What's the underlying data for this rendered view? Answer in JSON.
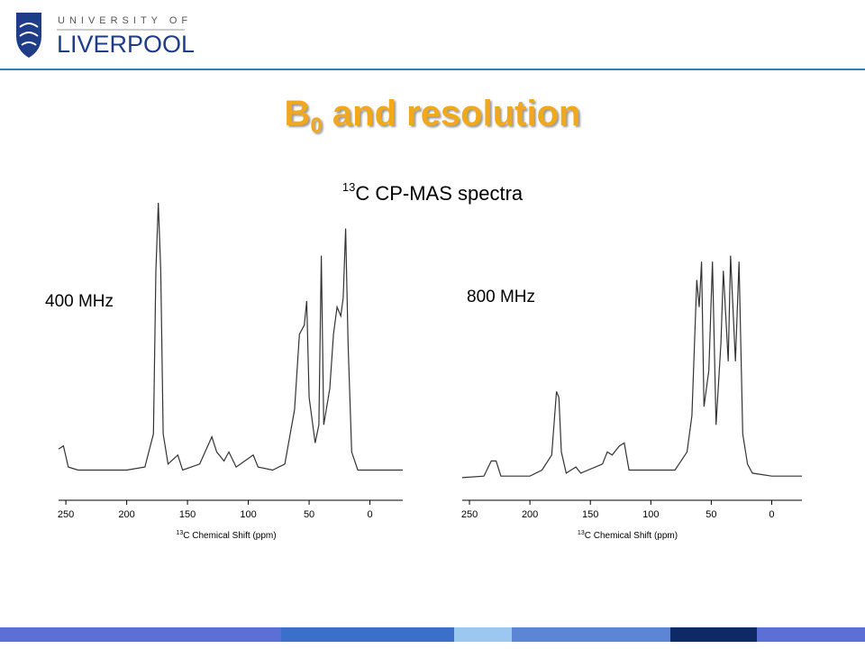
{
  "header": {
    "logo_line1": "UNIVERSITY OF",
    "logo_line2": "LIVERPOOL"
  },
  "title": {
    "main": "B",
    "subscript": "0",
    "rest": " and resolution"
  },
  "subtitle": {
    "sup": "13",
    "text": "C CP-MAS spectra"
  },
  "chart_data": [
    {
      "type": "line",
      "annotation": "400 MHz",
      "xlabel_sup": "13",
      "xlabel": "C Chemical Shift (ppm)",
      "xlim": [
        256,
        -27
      ],
      "xticks": [
        250,
        200,
        150,
        100,
        50,
        0
      ],
      "ylim": [
        0,
        100
      ],
      "series": [
        {
          "color": "#333333",
          "x": [
            256,
            252,
            248,
            240,
            200,
            185,
            178,
            176,
            174,
            172,
            170,
            166,
            158,
            154,
            140,
            130,
            126,
            120,
            116,
            110,
            96,
            92,
            80,
            70,
            62,
            58,
            54,
            52,
            50,
            45,
            42,
            40,
            38,
            33,
            30,
            27,
            24,
            22,
            20,
            18,
            15,
            10,
            0,
            -27
          ],
          "values": [
            17,
            18,
            11,
            10,
            10,
            11,
            22,
            76,
            98.5,
            76,
            22,
            12,
            15,
            10,
            12,
            21,
            16,
            13,
            16,
            11,
            15,
            11,
            10,
            12,
            30,
            55,
            58,
            66,
            34,
            19,
            25,
            81,
            25,
            37,
            55,
            64,
            61,
            67,
            90,
            52,
            16,
            10,
            10,
            10
          ]
        }
      ]
    },
    {
      "type": "line",
      "annotation": "800 MHz",
      "xlabel_sup": "13",
      "xlabel": "C Chemical Shift (ppm)",
      "xlim": [
        256,
        -25
      ],
      "xticks": [
        250,
        200,
        150,
        100,
        50,
        0
      ],
      "ylim": [
        0,
        100
      ],
      "series": [
        {
          "color": "#333333",
          "x": [
            256,
            238,
            232,
            228,
            224,
            200,
            190,
            182,
            178,
            176,
            174,
            170,
            162,
            158,
            140,
            136,
            132,
            126,
            122,
            118,
            100,
            80,
            70,
            66,
            62,
            60,
            58,
            56,
            52,
            49,
            46,
            42,
            40,
            36,
            34,
            30,
            27,
            24,
            20,
            16,
            0,
            -25
          ],
          "values": [
            7.5,
            8,
            13,
            13,
            8,
            8,
            10,
            15,
            36,
            34,
            16,
            9,
            11,
            9,
            12,
            16,
            15,
            18,
            19,
            10,
            10,
            10,
            16,
            28,
            73,
            64,
            79,
            31,
            43,
            79,
            25,
            52,
            76,
            46,
            81,
            46,
            79,
            22,
            12,
            9,
            8,
            8
          ]
        }
      ]
    }
  ]
}
